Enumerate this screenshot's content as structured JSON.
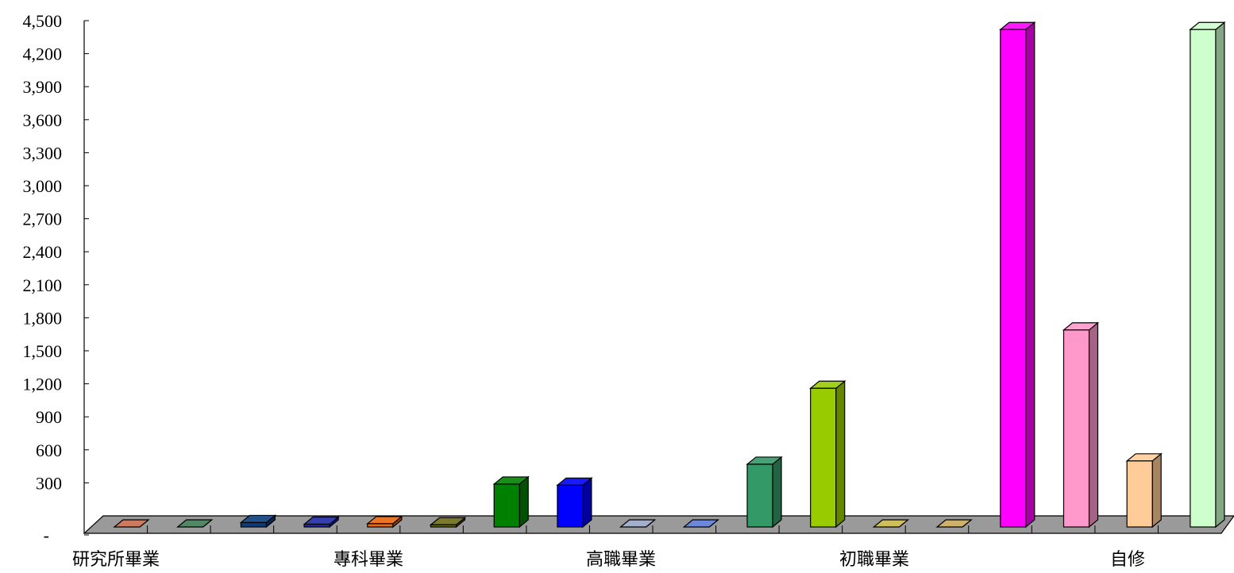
{
  "chart_data": {
    "type": "bar",
    "title": "",
    "xlabel": "",
    "ylabel": "",
    "ylim": [
      0,
      4500
    ],
    "yticks": [
      {
        "value": 0,
        "label": "-"
      },
      {
        "value": 300,
        "label": "300"
      },
      {
        "value": 600,
        "label": "600"
      },
      {
        "value": 900,
        "label": "900"
      },
      {
        "value": 1200,
        "label": "1,200"
      },
      {
        "value": 1500,
        "label": "1,500"
      },
      {
        "value": 1800,
        "label": "1,800"
      },
      {
        "value": 2100,
        "label": "2,100"
      },
      {
        "value": 2400,
        "label": "2,400"
      },
      {
        "value": 2700,
        "label": "2,700"
      },
      {
        "value": 3000,
        "label": "3,000"
      },
      {
        "value": 3300,
        "label": "3,300"
      },
      {
        "value": 3600,
        "label": "3,600"
      },
      {
        "value": 3900,
        "label": "3,900"
      },
      {
        "value": 4200,
        "label": "4,200"
      },
      {
        "value": 4500,
        "label": "4,500"
      }
    ],
    "categories": [
      "研究所畢業",
      "專科畢業",
      "高職畢業",
      "初職畢業",
      "自修"
    ],
    "bars": [
      {
        "category": 0,
        "value": 0,
        "color": "#c86b4e"
      },
      {
        "category": 0,
        "value": 0,
        "color": "#3f7a55"
      },
      {
        "category": 0,
        "value": 40,
        "color": "#0b3c7a"
      },
      {
        "category": 0,
        "value": 25,
        "color": "#1f2aa8"
      },
      {
        "category": 1,
        "value": 30,
        "color": "#e8660f"
      },
      {
        "category": 1,
        "value": 20,
        "color": "#6b6b12"
      },
      {
        "category": 1,
        "value": 390,
        "color": "#008000"
      },
      {
        "category": 1,
        "value": 380,
        "color": "#0000ff"
      },
      {
        "category": 2,
        "value": 0,
        "color": "#9aa6c8"
      },
      {
        "category": 2,
        "value": 0,
        "color": "#5a7bd6"
      },
      {
        "category": 2,
        "value": 570,
        "color": "#339966"
      },
      {
        "category": 2,
        "value": 1260,
        "color": "#99cc00"
      },
      {
        "category": 3,
        "value": 0,
        "color": "#c8b84a"
      },
      {
        "category": 3,
        "value": 0,
        "color": "#c8a85a"
      },
      {
        "category": 3,
        "value": 4520,
        "color": "#ff00ff"
      },
      {
        "category": 3,
        "value": 1790,
        "color": "#ff99cc"
      },
      {
        "category": 4,
        "value": 600,
        "color": "#ffcc99"
      },
      {
        "category": 4,
        "value": 4520,
        "color": "#ccffcc"
      }
    ],
    "grid": false,
    "legend": "none"
  }
}
